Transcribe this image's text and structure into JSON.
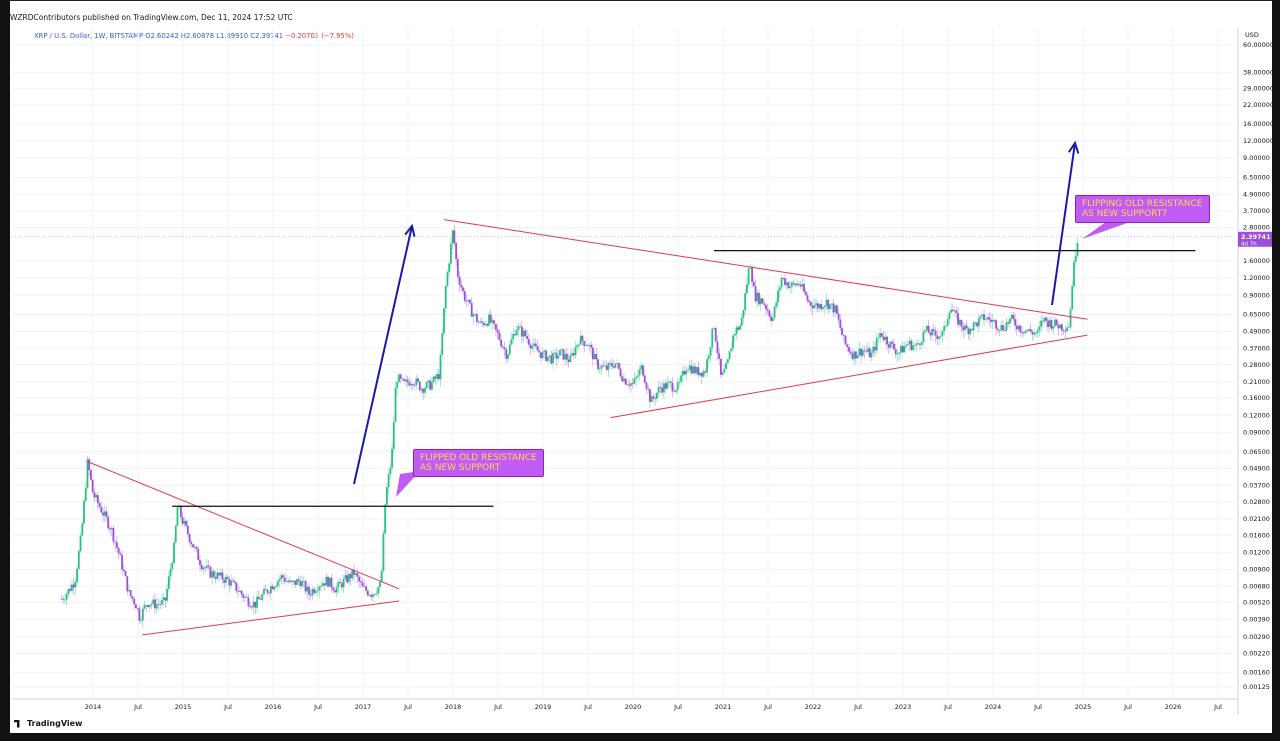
{
  "header": {
    "publisher": "WZRDContributors published on TradingView.com, Dec 11, 2024 17:52 UTC",
    "symbol": "XRP / U.S. Dollar, 1W, BITSTAMP",
    "ohlc": "O2.60242  H2.60878  L1.89910  C2.39741",
    "change": "−0.20703 (−7.95%)"
  },
  "price_scale": {
    "currency": "USD",
    "last_price": "2.39741",
    "countdown": "4d 7h"
  },
  "branding": {
    "logo_text": "TradingView"
  },
  "annotations": {
    "callout_2017": [
      "FLIPPED OLD RESISTANCE",
      "AS NEW SUPPORT"
    ],
    "callout_2024": [
      "FLIPPING OLD RESISTANCE",
      "AS NEW SUPPORT?"
    ]
  },
  "colors": {
    "up_candle": "#26c281",
    "down_candle": "#9c4fd8",
    "trendline": "#e53950",
    "arrow": "#1a1aa8",
    "callout_bg": "#c05cf5",
    "callout_text": "#ffd54a"
  },
  "chart_data": {
    "type": "candlestick",
    "scale": "log",
    "x_tick_labels": [
      "2014",
      "Jul",
      "2015",
      "Jul",
      "2016",
      "Jul",
      "2017",
      "Jul",
      "2018",
      "Jul",
      "2019",
      "Jul",
      "2020",
      "Jul",
      "2021",
      "Jul",
      "2022",
      "Jul",
      "2023",
      "Jul",
      "2024",
      "Jul",
      "2025",
      "Jul",
      "2026",
      "Jul"
    ],
    "x_tick_years": [
      2014,
      2014.5,
      2015,
      2015.5,
      2016,
      2016.5,
      2017,
      2017.5,
      2018,
      2018.5,
      2019,
      2019.5,
      2020,
      2020.5,
      2021,
      2021.5,
      2022,
      2022.5,
      2023,
      2023.5,
      2024,
      2024.5,
      2025,
      2025.5,
      2026,
      2026.5
    ],
    "y_tick_labels": [
      "60.00000",
      "38.00000",
      "29.00000",
      "22.00000",
      "16.00000",
      "12.00000",
      "9.00000",
      "6.50000",
      "4.90000",
      "3.70000",
      "2.80000",
      "1.60000",
      "1.20000",
      "0.90000",
      "0.65000",
      "0.49000",
      "0.37000",
      "0.28000",
      "0.21000",
      "0.16000",
      "0.12000",
      "0.09000",
      "0.06500",
      "0.04900",
      "0.03700",
      "0.02800",
      "0.02100",
      "0.01600",
      "0.01200",
      "0.00900",
      "0.00680",
      "0.00520",
      "0.00390",
      "0.00290",
      "0.00220",
      "0.00160",
      "0.00125"
    ],
    "price_path": [
      [
        2013.65,
        0.0055
      ],
      [
        2013.72,
        0.0062
      ],
      [
        2013.8,
        0.0075
      ],
      [
        2013.87,
        0.016
      ],
      [
        2013.94,
        0.055
      ],
      [
        2014.0,
        0.032
      ],
      [
        2014.1,
        0.024
      ],
      [
        2014.2,
        0.018
      ],
      [
        2014.3,
        0.011
      ],
      [
        2014.4,
        0.006
      ],
      [
        2014.48,
        0.005
      ],
      [
        2014.52,
        0.004
      ],
      [
        2014.6,
        0.0052
      ],
      [
        2014.7,
        0.005
      ],
      [
        2014.8,
        0.0052
      ],
      [
        2014.9,
        0.013
      ],
      [
        2014.94,
        0.026
      ],
      [
        2015.0,
        0.02
      ],
      [
        2015.1,
        0.014
      ],
      [
        2015.2,
        0.01
      ],
      [
        2015.3,
        0.0085
      ],
      [
        2015.4,
        0.008
      ],
      [
        2015.5,
        0.0075
      ],
      [
        2015.6,
        0.0065
      ],
      [
        2015.7,
        0.0055
      ],
      [
        2015.8,
        0.005
      ],
      [
        2015.9,
        0.006
      ],
      [
        2016.0,
        0.007
      ],
      [
        2016.1,
        0.008
      ],
      [
        2016.2,
        0.007
      ],
      [
        2016.3,
        0.0075
      ],
      [
        2016.4,
        0.006
      ],
      [
        2016.5,
        0.007
      ],
      [
        2016.6,
        0.0075
      ],
      [
        2016.7,
        0.0065
      ],
      [
        2016.8,
        0.0075
      ],
      [
        2016.9,
        0.0085
      ],
      [
        2017.0,
        0.0065
      ],
      [
        2017.1,
        0.006
      ],
      [
        2017.2,
        0.007
      ],
      [
        2017.25,
        0.03
      ],
      [
        2017.32,
        0.06
      ],
      [
        2017.37,
        0.23
      ],
      [
        2017.45,
        0.2
      ],
      [
        2017.55,
        0.22
      ],
      [
        2017.65,
        0.19
      ],
      [
        2017.75,
        0.2
      ],
      [
        2017.85,
        0.24
      ],
      [
        2017.92,
        1.05
      ],
      [
        2018.0,
        2.7
      ],
      [
        2018.05,
        1.3
      ],
      [
        2018.12,
        0.9
      ],
      [
        2018.2,
        0.7
      ],
      [
        2018.3,
        0.55
      ],
      [
        2018.4,
        0.6
      ],
      [
        2018.5,
        0.46
      ],
      [
        2018.6,
        0.33
      ],
      [
        2018.7,
        0.53
      ],
      [
        2018.8,
        0.46
      ],
      [
        2018.9,
        0.37
      ],
      [
        2019.0,
        0.33
      ],
      [
        2019.1,
        0.31
      ],
      [
        2019.2,
        0.34
      ],
      [
        2019.3,
        0.3
      ],
      [
        2019.4,
        0.43
      ],
      [
        2019.5,
        0.4
      ],
      [
        2019.6,
        0.28
      ],
      [
        2019.7,
        0.26
      ],
      [
        2019.8,
        0.29
      ],
      [
        2019.9,
        0.22
      ],
      [
        2020.0,
        0.2
      ],
      [
        2020.1,
        0.27
      ],
      [
        2020.2,
        0.15
      ],
      [
        2020.3,
        0.19
      ],
      [
        2020.4,
        0.2
      ],
      [
        2020.5,
        0.19
      ],
      [
        2020.6,
        0.28
      ],
      [
        2020.7,
        0.25
      ],
      [
        2020.8,
        0.25
      ],
      [
        2020.9,
        0.55
      ],
      [
        2020.98,
        0.22
      ],
      [
        2021.05,
        0.28
      ],
      [
        2021.12,
        0.48
      ],
      [
        2021.2,
        0.55
      ],
      [
        2021.3,
        1.6
      ],
      [
        2021.35,
        0.9
      ],
      [
        2021.45,
        0.8
      ],
      [
        2021.55,
        0.6
      ],
      [
        2021.65,
        1.2
      ],
      [
        2021.75,
        1.05
      ],
      [
        2021.85,
        1.1
      ],
      [
        2021.95,
        0.8
      ],
      [
        2022.05,
        0.75
      ],
      [
        2022.15,
        0.8
      ],
      [
        2022.25,
        0.7
      ],
      [
        2022.35,
        0.4
      ],
      [
        2022.45,
        0.33
      ],
      [
        2022.55,
        0.36
      ],
      [
        2022.65,
        0.33
      ],
      [
        2022.75,
        0.48
      ],
      [
        2022.85,
        0.4
      ],
      [
        2022.95,
        0.34
      ],
      [
        2023.05,
        0.4
      ],
      [
        2023.15,
        0.38
      ],
      [
        2023.25,
        0.5
      ],
      [
        2023.35,
        0.46
      ],
      [
        2023.45,
        0.47
      ],
      [
        2023.52,
        0.75
      ],
      [
        2023.6,
        0.6
      ],
      [
        2023.7,
        0.5
      ],
      [
        2023.8,
        0.55
      ],
      [
        2023.9,
        0.62
      ],
      [
        2024.0,
        0.58
      ],
      [
        2024.1,
        0.52
      ],
      [
        2024.2,
        0.6
      ],
      [
        2024.3,
        0.52
      ],
      [
        2024.4,
        0.49
      ],
      [
        2024.5,
        0.47
      ],
      [
        2024.55,
        0.6
      ],
      [
        2024.62,
        0.57
      ],
      [
        2024.7,
        0.55
      ],
      [
        2024.78,
        0.53
      ],
      [
        2024.85,
        0.55
      ],
      [
        2024.88,
        1.1
      ],
      [
        2024.91,
        1.7
      ],
      [
        2024.94,
        2.3974
      ]
    ],
    "trendlines": [
      {
        "kind": "resistance",
        "from": [
          2013.94,
          0.055
        ],
        "to": [
          2017.4,
          0.0065
        ]
      },
      {
        "kind": "support",
        "from": [
          2014.55,
          0.003
        ],
        "to": [
          2017.4,
          0.0053
        ]
      },
      {
        "kind": "horizontal",
        "from": [
          2014.88,
          0.026
        ],
        "to": [
          2018.45,
          0.026
        ]
      },
      {
        "kind": "resistance",
        "from": [
          2017.9,
          3.2
        ],
        "to": [
          2025.05,
          0.6
        ]
      },
      {
        "kind": "support",
        "from": [
          2019.75,
          0.115
        ],
        "to": [
          2025.05,
          0.46
        ]
      },
      {
        "kind": "horizontal",
        "from": [
          2020.9,
          1.9
        ],
        "to": [
          2026.25,
          1.9
        ]
      }
    ]
  }
}
